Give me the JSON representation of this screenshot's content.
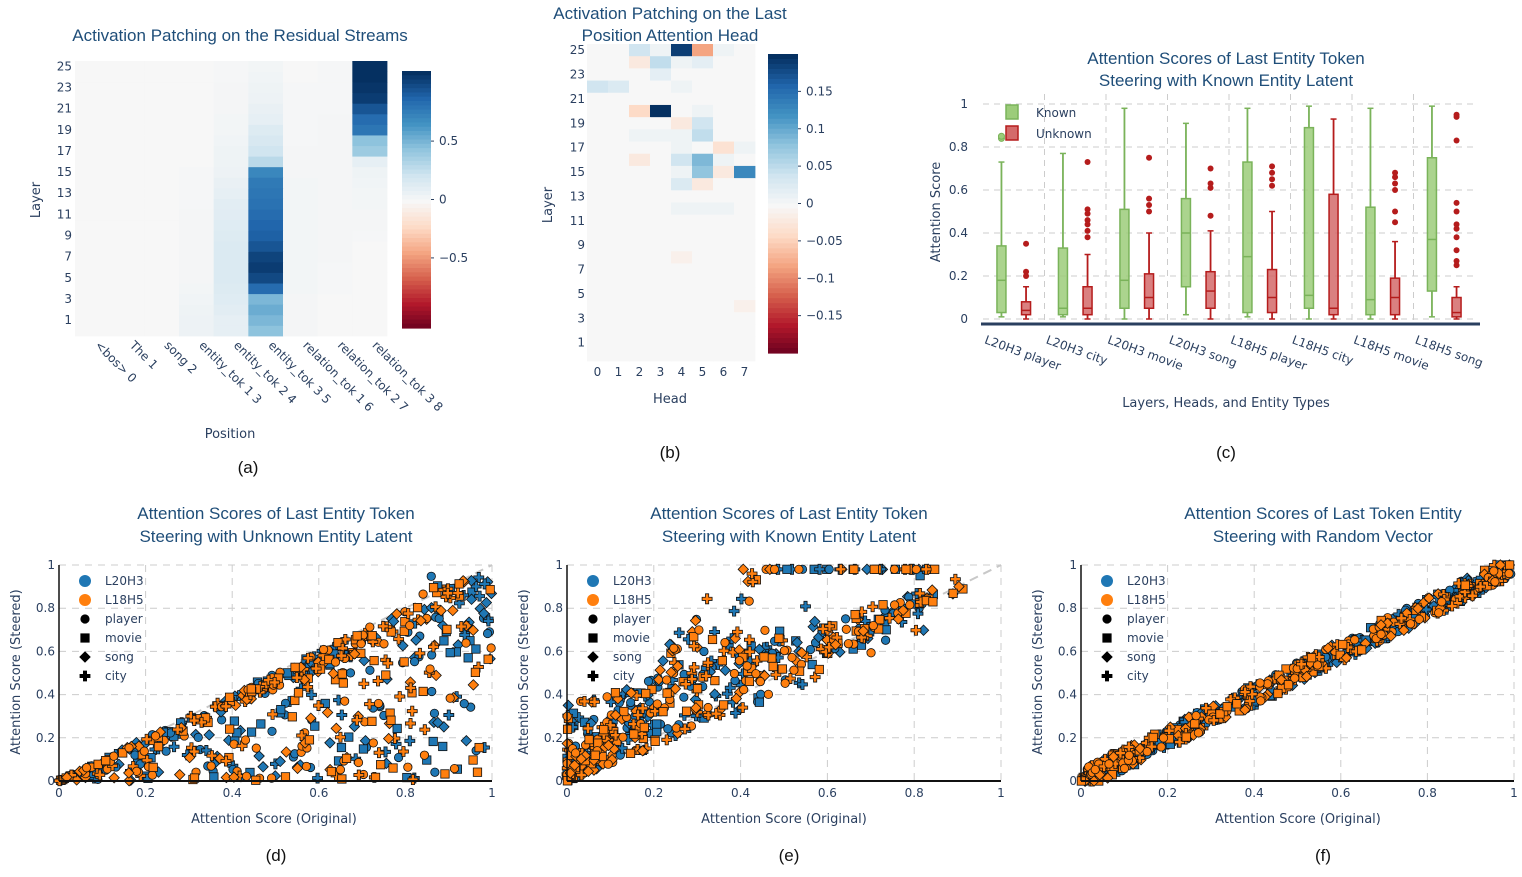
{
  "captions": [
    "(a)",
    "(b)",
    "(c)",
    "(d)",
    "(e)",
    "(f)"
  ],
  "chart_data": [
    {
      "id": "a",
      "type": "heatmap",
      "title": "Activation Patching on the Residual Streams",
      "xlabel": "Position",
      "ylabel": "Layer",
      "categories": [
        "<bos> 0",
        "The 1",
        "song 2",
        "entity_tok 1 3",
        "entity_tok 2 4",
        "entity_tok 3 5",
        "relation_tok 1 6",
        "relation_tok 2 7",
        "relation_tok 3 8"
      ],
      "layers": [
        1,
        3,
        5,
        7,
        9,
        11,
        13,
        15,
        17,
        19,
        21,
        23,
        25
      ],
      "row_order": "bottom-to-top (layer 0 .. 25)",
      "values": [
        [
          0,
          0,
          0,
          0.06,
          0.1,
          0.45,
          0.02,
          0,
          0
        ],
        [
          0,
          0,
          0,
          0.06,
          0.1,
          0.5,
          0.02,
          0,
          0
        ],
        [
          0,
          0,
          0,
          0.05,
          0.12,
          0.55,
          0.02,
          0,
          0
        ],
        [
          0,
          0,
          0,
          0.04,
          0.14,
          0.5,
          0.02,
          0,
          0
        ],
        [
          0,
          0,
          0,
          0.03,
          0.15,
          0.85,
          0.03,
          0.01,
          0
        ],
        [
          0,
          0,
          0,
          0.02,
          0.16,
          1.0,
          0.03,
          0.01,
          0
        ],
        [
          0,
          0,
          0,
          0.02,
          0.16,
          1.05,
          0.03,
          0.01,
          0
        ],
        [
          0,
          0,
          0,
          0.02,
          0.16,
          1.02,
          0.03,
          0.02,
          0
        ],
        [
          0,
          0,
          0,
          0.02,
          0.16,
          0.95,
          0.03,
          0.02,
          0
        ],
        [
          0,
          0,
          0,
          0.02,
          0.15,
          0.9,
          0.03,
          0.02,
          0.01
        ],
        [
          0,
          0,
          0,
          0.02,
          0.14,
          0.88,
          0.03,
          0.02,
          0.02
        ],
        [
          0,
          0,
          0,
          0.02,
          0.13,
          0.85,
          0.03,
          0.02,
          0.02
        ],
        [
          0,
          0,
          0,
          0.01,
          0.12,
          0.82,
          0.03,
          0.02,
          0.03
        ],
        [
          0,
          0,
          0,
          0.01,
          0.1,
          0.8,
          0.03,
          0.02,
          0.03
        ],
        [
          0,
          0,
          0,
          0.01,
          0.08,
          0.78,
          0.03,
          0.02,
          0.04
        ],
        [
          0,
          0,
          0,
          0.01,
          0.06,
          0.72,
          0.02,
          0.02,
          0.05
        ],
        [
          0,
          0,
          0,
          0,
          0.05,
          0.3,
          0.02,
          0.02,
          0.1
        ],
        [
          0,
          0,
          0,
          0,
          0.05,
          0.22,
          0.02,
          0.02,
          0.4
        ],
        [
          0,
          0,
          0,
          0,
          0.04,
          0.18,
          0.01,
          0.02,
          0.45
        ],
        [
          0,
          0,
          0,
          0,
          0.03,
          0.15,
          0.01,
          0.02,
          0.8
        ],
        [
          0,
          0,
          0,
          0,
          0.03,
          0.1,
          0.01,
          0.02,
          0.85
        ],
        [
          0,
          0,
          0,
          0,
          0.02,
          0.08,
          0.01,
          0.01,
          0.95
        ],
        [
          0,
          0,
          0,
          0,
          0.02,
          0.06,
          0.01,
          0.01,
          1.05
        ],
        [
          0,
          0,
          0,
          0,
          0.02,
          0.05,
          0.01,
          0.01,
          1.08
        ],
        [
          0,
          0,
          0,
          0,
          0.01,
          0.04,
          0,
          0.01,
          1.1
        ],
        [
          0,
          0,
          0,
          0,
          0.01,
          0.03,
          0,
          0.01,
          1.1
        ]
      ],
      "colorbar": {
        "range": [
          -1.1,
          1.1
        ],
        "ticks": [
          0.5,
          0,
          -0.5
        ],
        "tick_labels": [
          "0.5",
          "0",
          "−0.5"
        ]
      }
    },
    {
      "id": "b",
      "type": "heatmap",
      "title": "Activation Patching on the Last Position Attention Head",
      "title_lines": [
        "Activation Patching on the Last",
        "Position Attention Head"
      ],
      "xlabel": "Head",
      "ylabel": "Layer",
      "heads": [
        "0",
        "1",
        "2",
        "3",
        "4",
        "5",
        "6",
        "7"
      ],
      "layers": [
        1,
        3,
        5,
        7,
        9,
        11,
        13,
        15,
        17,
        19,
        21,
        23,
        25
      ],
      "row_order": "top-to-bottom (layer 25 .. 0)",
      "values": [
        [
          0,
          0,
          0.04,
          0.01,
          0.19,
          -0.08,
          0.01,
          0
        ],
        [
          0,
          0,
          -0.02,
          0.05,
          0.01,
          0.02,
          0,
          0
        ],
        [
          0,
          0,
          0,
          0.02,
          0,
          0,
          0,
          0
        ],
        [
          0.04,
          0.03,
          0,
          0,
          0.01,
          0,
          0,
          0
        ],
        [
          0,
          0,
          0,
          0,
          0,
          0,
          0,
          0
        ],
        [
          0,
          0,
          -0.04,
          0.2,
          0,
          0.01,
          0,
          0
        ],
        [
          0,
          0,
          0,
          0,
          -0.02,
          0.04,
          0,
          0
        ],
        [
          0,
          0,
          0.01,
          0.01,
          0.01,
          0.05,
          0,
          0
        ],
        [
          0,
          0,
          0,
          0,
          0.01,
          0,
          -0.03,
          0.01
        ],
        [
          0,
          0,
          -0.02,
          0,
          0.04,
          0.09,
          0.01,
          0
        ],
        [
          0,
          0,
          0,
          0,
          0.01,
          0.08,
          -0.02,
          0.13
        ],
        [
          0,
          0,
          0,
          0,
          0.03,
          -0.02,
          0,
          0
        ],
        [
          0,
          0,
          0,
          0,
          0,
          0,
          0,
          0
        ],
        [
          0,
          0,
          0,
          0,
          0.01,
          0.01,
          0.01,
          0
        ],
        [
          0,
          0,
          0,
          0,
          0,
          0,
          0,
          0
        ],
        [
          0,
          0,
          0,
          0,
          0,
          0,
          0,
          0
        ],
        [
          0,
          0,
          0,
          0,
          0,
          0,
          0,
          0
        ],
        [
          0,
          0,
          0,
          0,
          -0.01,
          0,
          0,
          0
        ],
        [
          0,
          0,
          0,
          0,
          0,
          0,
          0,
          0
        ],
        [
          0,
          0,
          0,
          0,
          0,
          0,
          0,
          0
        ],
        [
          0,
          0,
          0,
          0,
          0,
          0,
          0,
          0
        ],
        [
          0,
          0,
          0,
          0,
          0,
          0,
          0,
          -0.01
        ],
        [
          0,
          0,
          0,
          0,
          0,
          0,
          0,
          0
        ],
        [
          0,
          0,
          0,
          0,
          0,
          0,
          0,
          0
        ],
        [
          0,
          0,
          0,
          0,
          0,
          0,
          0,
          0
        ],
        [
          0,
          0,
          0,
          0,
          0,
          0,
          0,
          0
        ]
      ],
      "colorbar": {
        "range": [
          -0.2,
          0.2
        ],
        "ticks": [
          0.15,
          0.1,
          0.05,
          0,
          -0.05,
          -0.1,
          -0.15
        ],
        "tick_labels": [
          "0.15",
          "0.1",
          "0.05",
          "0",
          "−0.05",
          "−0.1",
          "−0.15"
        ]
      }
    },
    {
      "id": "c",
      "type": "box",
      "title": "Attention Scores of Last Entity Token Steering with Known Entity Latent",
      "title_lines": [
        "Attention Scores of Last Entity Token",
        "Steering with Known Entity Latent"
      ],
      "xlabel": "Layers, Heads, and Entity Types",
      "ylabel": "Attention Score",
      "ylim": [
        0,
        1
      ],
      "y_ticks": [
        "0",
        "0.2",
        "0.4",
        "0.6",
        "0.8",
        "1"
      ],
      "categories": [
        "L20H3 player",
        "L20H3 city",
        "L20H3 movie",
        "L20H3 song",
        "L18H5 player",
        "L18H5 city",
        "L18H5 movie",
        "L18H5 song"
      ],
      "series": [
        {
          "name": "Known",
          "color": "#9ccc7a",
          "edge": "#7ab35a",
          "boxes": [
            {
              "min": 0.01,
              "q1": 0.03,
              "med": 0.18,
              "q3": 0.34,
              "max": 0.73,
              "outliers": [
                0.84,
                0.85
              ]
            },
            {
              "min": 0.01,
              "q1": 0.02,
              "med": 0.05,
              "q3": 0.33,
              "max": 0.77,
              "outliers": []
            },
            {
              "min": 0.0,
              "q1": 0.05,
              "med": 0.18,
              "q3": 0.51,
              "max": 0.98,
              "outliers": []
            },
            {
              "min": 0.02,
              "q1": 0.15,
              "med": 0.4,
              "q3": 0.56,
              "max": 0.91,
              "outliers": []
            },
            {
              "min": 0.01,
              "q1": 0.03,
              "med": 0.29,
              "q3": 0.73,
              "max": 0.98,
              "outliers": []
            },
            {
              "min": 0.0,
              "q1": 0.05,
              "med": 0.11,
              "q3": 0.89,
              "max": 0.99,
              "outliers": []
            },
            {
              "min": 0.0,
              "q1": 0.02,
              "med": 0.09,
              "q3": 0.52,
              "max": 0.98,
              "outliers": []
            },
            {
              "min": 0.01,
              "q1": 0.13,
              "med": 0.37,
              "q3": 0.75,
              "max": 0.99,
              "outliers": []
            }
          ]
        },
        {
          "name": "Unknown",
          "color": "#d46a6a",
          "edge": "#b51c1c",
          "boxes": [
            {
              "min": 0.0,
              "q1": 0.02,
              "med": 0.04,
              "q3": 0.08,
              "max": 0.15,
              "outliers": [
                0.2,
                0.22,
                0.35
              ]
            },
            {
              "min": 0.0,
              "q1": 0.02,
              "med": 0.05,
              "q3": 0.15,
              "max": 0.3,
              "outliers": [
                0.38,
                0.41,
                0.44,
                0.46,
                0.49,
                0.51,
                0.73
              ]
            },
            {
              "min": 0.0,
              "q1": 0.05,
              "med": 0.1,
              "q3": 0.21,
              "max": 0.4,
              "outliers": [
                0.5,
                0.53,
                0.56,
                0.75
              ]
            },
            {
              "min": 0.0,
              "q1": 0.05,
              "med": 0.13,
              "q3": 0.22,
              "max": 0.41,
              "outliers": [
                0.48,
                0.61,
                0.63,
                0.7
              ]
            },
            {
              "min": 0.0,
              "q1": 0.03,
              "med": 0.1,
              "q3": 0.23,
              "max": 0.5,
              "outliers": [
                0.62,
                0.65,
                0.68,
                0.71
              ]
            },
            {
              "min": 0.0,
              "q1": 0.02,
              "med": 0.05,
              "q3": 0.58,
              "max": 0.93,
              "outliers": []
            },
            {
              "min": 0.0,
              "q1": 0.02,
              "med": 0.1,
              "q3": 0.19,
              "max": 0.36,
              "outliers": [
                0.45,
                0.5,
                0.6,
                0.63,
                0.66,
                0.68
              ]
            },
            {
              "min": 0.0,
              "q1": 0.01,
              "med": 0.03,
              "q3": 0.1,
              "max": 0.15,
              "outliers": [
                0.25,
                0.27,
                0.32,
                0.38,
                0.42,
                0.44,
                0.5,
                0.54,
                0.83,
                0.94,
                0.95
              ]
            }
          ]
        }
      ]
    },
    {
      "id": "d",
      "type": "scatter",
      "title": "Attention Scores of Last Entity Token Steering with Unknown Entity Latent",
      "title_lines": [
        "Attention Scores of Last Entity Token",
        "Steering with Unknown Entity Latent"
      ],
      "xlabel": "Attention Score (Original)",
      "ylabel": "Attention Score (Steered)",
      "xlim": [
        0,
        1
      ],
      "ylim": [
        0,
        1
      ],
      "x_ticks": [
        "0",
        "0.2",
        "0.4",
        "0.6",
        "0.8",
        "1"
      ],
      "y_ticks": [
        "0",
        "0.2",
        "0.4",
        "0.6",
        "0.8",
        "1"
      ],
      "legend": {
        "position": "top-left",
        "entries": [
          "L20H3",
          "L18H5",
          "player",
          "movie",
          "song",
          "city"
        ]
      },
      "relationship": "steered below diagonal: many points fall toward 0 for high original scores",
      "series": [
        {
          "name": "L20H3",
          "color": "#1f77b4",
          "generator": {
            "seed": 11,
            "n": 260,
            "mode": "down"
          }
        },
        {
          "name": "L18H5",
          "color": "#ff7f0e",
          "generator": {
            "seed": 23,
            "n": 300,
            "mode": "down"
          }
        }
      ]
    },
    {
      "id": "e",
      "type": "scatter",
      "title": "Attention Scores of Last Entity Token Steering with Known Entity Latent",
      "title_lines": [
        "Attention Scores of Last Entity Token",
        "Steering with Known Entity Latent"
      ],
      "xlabel": "Attention Score (Original)",
      "ylabel": "Attention Score (Steered)",
      "xlim": [
        0,
        1
      ],
      "ylim": [
        0,
        1
      ],
      "x_ticks": [
        "0",
        "0.2",
        "0.4",
        "0.6",
        "0.8",
        "1"
      ],
      "y_ticks": [
        "0",
        "0.2",
        "0.4",
        "0.6",
        "0.8",
        "1"
      ],
      "legend": {
        "position": "top-left",
        "entries": [
          "L20H3",
          "L18H5",
          "player",
          "movie",
          "song",
          "city"
        ]
      },
      "relationship": "steered above diagonal: low original scores increase substantially",
      "series": [
        {
          "name": "L20H3",
          "color": "#1f77b4",
          "generator": {
            "seed": 37,
            "n": 260,
            "mode": "up"
          }
        },
        {
          "name": "L18H5",
          "color": "#ff7f0e",
          "generator": {
            "seed": 41,
            "n": 320,
            "mode": "up"
          }
        }
      ]
    },
    {
      "id": "f",
      "type": "scatter",
      "title": "Attention Scores of Last Token Entity Steering with Random Vector",
      "title_lines": [
        "Attention Scores of Last Token Entity",
        "Steering with Random Vector"
      ],
      "xlabel": "Attention Score (Original)",
      "ylabel": "Attention Score (Steered)",
      "xlim": [
        0,
        1
      ],
      "ylim": [
        0,
        1
      ],
      "x_ticks": [
        "0",
        "0.2",
        "0.4",
        "0.6",
        "0.8",
        "1"
      ],
      "y_ticks": [
        "0",
        "0.2",
        "0.4",
        "0.6",
        "0.8",
        "1"
      ],
      "legend": {
        "position": "top-left",
        "entries": [
          "L20H3",
          "L18H5",
          "player",
          "movie",
          "song",
          "city"
        ]
      },
      "relationship": "points cluster tightly along the diagonal",
      "series": [
        {
          "name": "L20H3",
          "color": "#1f77b4",
          "generator": {
            "seed": 53,
            "n": 280,
            "mode": "diag"
          }
        },
        {
          "name": "L18H5",
          "color": "#ff7f0e",
          "generator": {
            "seed": 67,
            "n": 320,
            "mode": "diag"
          }
        }
      ]
    }
  ]
}
